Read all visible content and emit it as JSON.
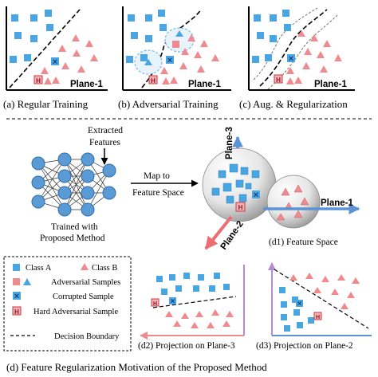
{
  "colors": {
    "class_a": "#4aa6e0",
    "class_b": "#ef8a8f",
    "axis": "#000000",
    "plane_arrow": "#ec6d73",
    "plane_arrow_blue": "#5d93d6",
    "hard_fill": "#f2b1b4"
  },
  "panels": {
    "a": {
      "caption": "(a) Regular Training",
      "plane": "Plane-1"
    },
    "b": {
      "caption": "(b) Adversarial Training",
      "plane": "Plane-1"
    },
    "c": {
      "caption": "(c) Aug. & Regularization",
      "plane": "Plane-1"
    }
  },
  "hard_marker": "H",
  "corrupt_marker": "×",
  "network": {
    "extracted": "Extracted",
    "features": "Features",
    "trained_with": "Trained with",
    "proposed_method": "Proposed Method"
  },
  "map": {
    "line1": "Map to",
    "line2": "Feature Space"
  },
  "sphere": {
    "plane1": "Plane-1",
    "plane2": "Plane-2",
    "plane3": "Plane-3",
    "caption": "(d1) Feature Space"
  },
  "legend": {
    "class_a": "Class A",
    "class_b": "Class B",
    "adversarial": "Adversarial Samples",
    "corrupted": "Corrupted Sample",
    "hard": "Hard Adversarial Sample",
    "boundary": "Decision Boundary"
  },
  "d2": {
    "caption": "(d2) Projection on Plane-3"
  },
  "d3": {
    "caption": "(d3) Projection on Plane-2"
  },
  "main_caption": "(d) Feature Regularization Motivation of the Proposed Method"
}
